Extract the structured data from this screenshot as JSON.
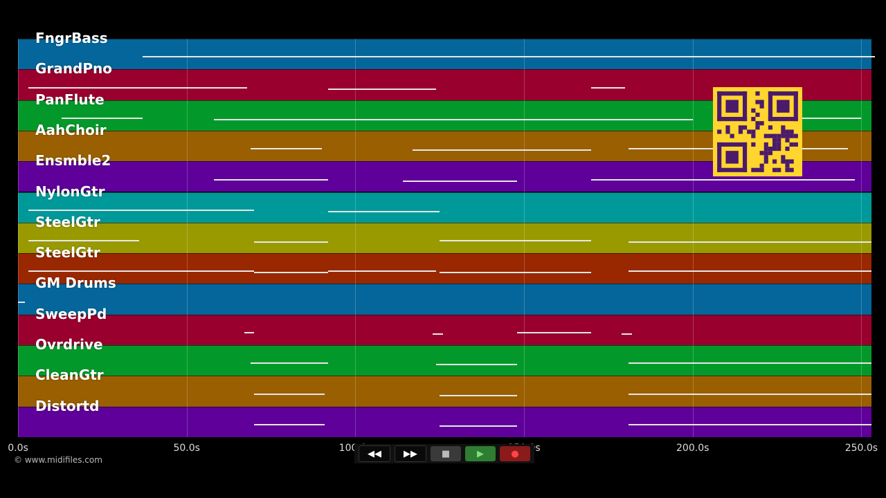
{
  "tracks": [
    {
      "name": "FngrBass",
      "color": "#04669a"
    },
    {
      "name": "GrandPno",
      "color": "#99002e"
    },
    {
      "name": "PanFlute",
      "color": "#03992a"
    },
    {
      "name": "AahChoir",
      "color": "#995f00"
    },
    {
      "name": "Ensmble2",
      "color": "#5e0099"
    },
    {
      "name": "NylonGtr",
      "color": "#009999"
    },
    {
      "name": "SteelGtr",
      "color": "#999900"
    },
    {
      "name": "SteelGtr",
      "color": "#992700"
    },
    {
      "name": "GM Drums",
      "color": "#04669a"
    },
    {
      "name": "SweepPd",
      "color": "#99002e"
    },
    {
      "name": "Ovrdrive",
      "color": "#03992a"
    },
    {
      "name": "CleanGtr",
      "color": "#995f00"
    },
    {
      "name": "Distortd",
      "color": "#5e0099"
    }
  ],
  "timeline": {
    "duration_s": 253,
    "ticks": [
      "0.0s",
      "50.0s",
      "100.0s",
      "150.0s",
      "200.0s",
      "250.0s"
    ],
    "tick_values": [
      0,
      50,
      100,
      150,
      200,
      250
    ]
  },
  "note_segments_s": [
    [
      [
        37,
        254
      ]
    ],
    [
      [
        3,
        68
      ],
      [
        92,
        124
      ],
      [
        170,
        180
      ]
    ],
    [
      [
        13,
        37
      ],
      [
        58,
        200
      ],
      [
        215,
        250
      ]
    ],
    [
      [
        69,
        90
      ],
      [
        117,
        170
      ],
      [
        181,
        246
      ]
    ],
    [
      [
        58,
        92
      ],
      [
        114,
        148
      ],
      [
        170,
        248
      ]
    ],
    [
      [
        3,
        70
      ],
      [
        92,
        125
      ]
    ],
    [
      [
        3,
        36
      ],
      [
        70,
        92
      ],
      [
        125,
        170
      ],
      [
        181,
        253
      ]
    ],
    [
      [
        3,
        70
      ],
      [
        70,
        92
      ],
      [
        92,
        124
      ],
      [
        125,
        170
      ],
      [
        181,
        253
      ]
    ],
    [
      [
        0,
        2
      ]
    ],
    [
      [
        67,
        70
      ],
      [
        123,
        126
      ],
      [
        148,
        170
      ],
      [
        179,
        182
      ]
    ],
    [
      [
        69,
        92
      ],
      [
        124,
        148
      ],
      [
        181,
        253
      ]
    ],
    [
      [
        70,
        91
      ],
      [
        125,
        148
      ],
      [
        181,
        253
      ]
    ],
    [
      [
        70,
        91
      ],
      [
        125,
        148
      ],
      [
        181,
        253
      ]
    ]
  ],
  "copyright": "© www.midifiles.com",
  "transport": {
    "rewind": "◀◀",
    "forward": "▶▶",
    "stop": "■",
    "play": "▶",
    "record": "●"
  },
  "qr_code": {
    "color": "#ffd52e",
    "module_color": "#4a1a6b"
  },
  "icons": [
    "rewind-icon",
    "fast-forward-icon",
    "stop-icon",
    "play-icon",
    "record-icon",
    "qr-code"
  ]
}
